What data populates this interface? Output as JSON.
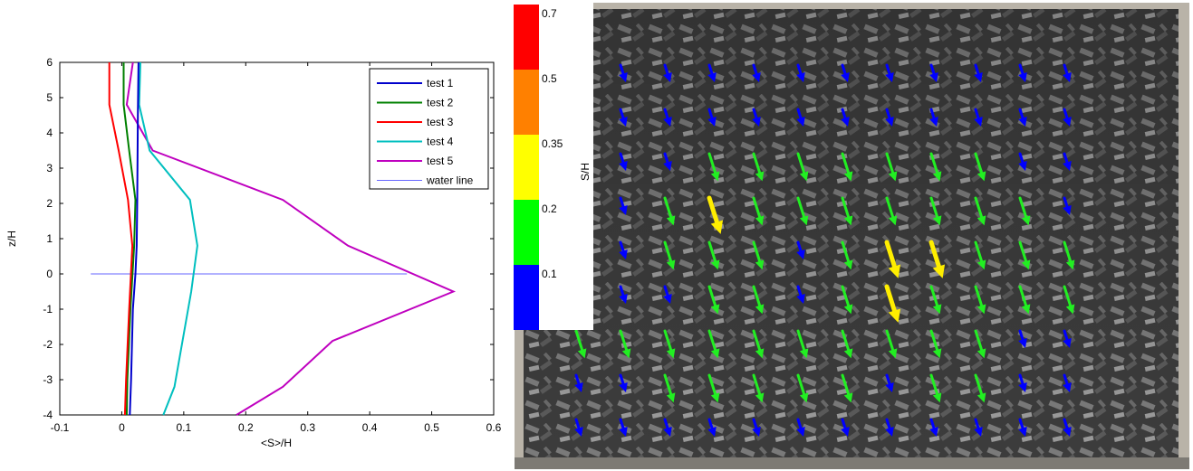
{
  "chart_data": [
    {
      "type": "line",
      "xlabel": "<S>/H",
      "ylabel": "z/H",
      "xlim": [
        -0.1,
        0.6
      ],
      "ylim": [
        -4,
        6
      ],
      "xticks": [
        "-0.1",
        "0",
        "0.1",
        "0.2",
        "0.3",
        "0.4",
        "0.5",
        "0.6"
      ],
      "yticks": [
        "-4",
        "-3",
        "-2",
        "-1",
        "0",
        "1",
        "2",
        "3",
        "4",
        "5",
        "6"
      ],
      "grid": false,
      "legend_position": "top-right",
      "series": [
        {
          "name": "test 1",
          "color": "#0000cc",
          "x": [
            0.027,
            0.026,
            0.025,
            0.024,
            0.022,
            0.018,
            0.015,
            0.013
          ],
          "y": [
            6,
            4.5,
            2.1,
            0.8,
            0,
            -1,
            -3,
            -4
          ]
        },
        {
          "name": "test 2",
          "color": "#008000",
          "x": [
            0.003,
            0.003,
            0.012,
            0.022,
            0.02,
            0.014,
            0.009,
            0.008
          ],
          "y": [
            6,
            4.8,
            3.5,
            2.1,
            0.8,
            -1,
            -3,
            -4
          ]
        },
        {
          "name": "test 3",
          "color": "#ff0000",
          "x": [
            -0.02,
            -0.02,
            -0.005,
            0.01,
            0.017,
            0.012,
            0.007,
            0.005
          ],
          "y": [
            6,
            4.8,
            3.5,
            2.1,
            0.8,
            -1,
            -3,
            -4
          ]
        },
        {
          "name": "test 4",
          "color": "#00bfbf",
          "x": [
            0.03,
            0.028,
            0.045,
            0.11,
            0.122,
            0.112,
            0.085,
            0.067
          ],
          "y": [
            6,
            4.8,
            3.5,
            2.1,
            0.8,
            -0.5,
            -3.2,
            -4
          ]
        },
        {
          "name": "test 5",
          "color": "#bf00bf",
          "x": [
            0.018,
            0.008,
            0.05,
            0.26,
            0.365,
            0.535,
            0.34,
            0.26,
            0.185
          ],
          "y": [
            6,
            4.8,
            3.5,
            2.1,
            0.8,
            -0.5,
            -1.9,
            -3.2,
            -4
          ]
        },
        {
          "name": "water line",
          "color": "#6666ff",
          "x": [
            -0.05,
            0.46
          ],
          "y": [
            0,
            0
          ]
        }
      ]
    },
    {
      "type": "heatmap",
      "description_kind": "colorbar",
      "colorbar_label": "S/H",
      "bins": [
        {
          "label": "0.1",
          "color": "#0000ff"
        },
        {
          "label": "0.2",
          "color": "#00ff00"
        },
        {
          "label": "0.35",
          "color": "#ffff00"
        },
        {
          "label": "0.5",
          "color": "#ff8000"
        },
        {
          "label": "0.7",
          "color": "#ff0000"
        }
      ],
      "arrow_rows": [
        [
          "blue",
          "blue",
          "blue",
          "blue",
          "blue",
          "blue",
          "blue",
          "blue",
          "blue",
          "blue",
          "blue",
          "blue"
        ],
        [
          "blue",
          "blue",
          "blue",
          "blue",
          "blue",
          "blue",
          "blue",
          "blue",
          "blue",
          "blue",
          "blue",
          "blue"
        ],
        [
          "blue",
          "blue",
          "blue",
          "green",
          "green",
          "green",
          "green",
          "green",
          "green",
          "green",
          "blue",
          "blue"
        ],
        [
          "blue",
          "blue",
          "green",
          "yellow",
          "green",
          "green",
          "green",
          "green",
          "green",
          "green",
          "green",
          "blue"
        ],
        [
          "blue",
          "blue",
          "green",
          "green",
          "green",
          "blue",
          "green",
          "yellow",
          "yellow",
          "green",
          "green",
          "green"
        ],
        [
          "blue",
          "blue",
          "blue",
          "green",
          "green",
          "blue",
          "green",
          "yellow",
          "green",
          "green",
          "green",
          "green"
        ],
        [
          "green",
          "green",
          "green",
          "green",
          "green",
          "green",
          "green",
          "green",
          "green",
          "green",
          "blue",
          "blue"
        ],
        [
          "blue",
          "blue",
          "green",
          "green",
          "green",
          "green",
          "green",
          "blue",
          "green",
          "green",
          "blue",
          "blue"
        ],
        [
          "blue",
          "blue",
          "blue",
          "blue",
          "blue",
          "blue",
          "blue",
          "blue",
          "blue",
          "blue",
          "blue",
          "blue"
        ]
      ]
    }
  ]
}
